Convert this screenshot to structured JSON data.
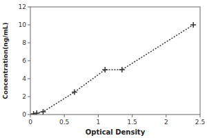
{
  "chart_data": {
    "type": "line",
    "x": [
      0.047,
      0.094,
      0.188,
      0.65,
      1.1,
      1.35,
      2.4
    ],
    "values": [
      0.078,
      0.156,
      0.312,
      2.5,
      5,
      5,
      10
    ],
    "xlabel": "Optical Density",
    "ylabel": "Concentration(ng/mL)",
    "xlim": [
      0,
      2.5
    ],
    "ylim": [
      0,
      12
    ],
    "xticks": [
      0,
      0.5,
      1,
      1.5,
      2,
      2.5
    ],
    "yticks": [
      0,
      2,
      4,
      6,
      8,
      10,
      12
    ],
    "color": "#333333",
    "marker": "plus",
    "line_style": "dotted",
    "grid": false
  }
}
